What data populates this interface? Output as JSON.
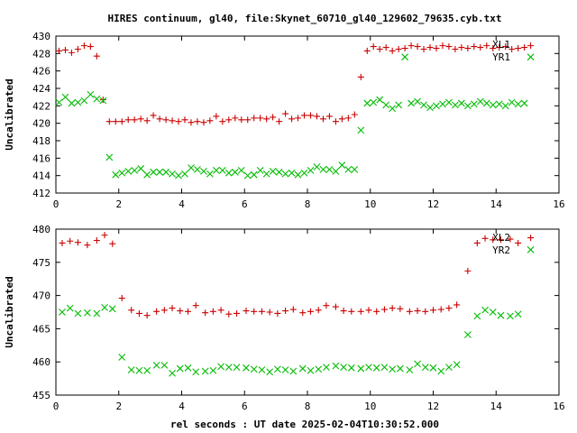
{
  "title": "HIRES continuum, gl40, file:Skynet_60710_gl40_129602_79635.cyb.txt",
  "xlabel": "rel seconds : UT date 2025-02-04T10:30:52.000",
  "colors": {
    "red_series": "#cc0000",
    "green_series": "#00bb00",
    "axes": "#000000",
    "background": "#ffffff"
  },
  "chart_data": [
    {
      "type": "scatter",
      "ylabel": "Uncalibrated",
      "xlim": [
        0,
        16
      ],
      "ylim": [
        412,
        430
      ],
      "xticks": [
        0,
        2,
        4,
        6,
        8,
        10,
        12,
        14,
        16
      ],
      "yticks": [
        412,
        414,
        416,
        418,
        420,
        422,
        424,
        426,
        428,
        430
      ],
      "grid": false,
      "legend_position": "top-right",
      "series": [
        {
          "name": "XL1",
          "marker": "plus",
          "color": "#cc0000",
          "x": [
            0.1,
            0.3,
            0.5,
            0.7,
            0.9,
            1.1,
            1.3,
            1.5,
            1.7,
            1.9,
            2.1,
            2.3,
            2.5,
            2.7,
            2.9,
            3.1,
            3.3,
            3.5,
            3.7,
            3.9,
            4.1,
            4.3,
            4.5,
            4.7,
            4.9,
            5.1,
            5.3,
            5.5,
            5.7,
            5.9,
            6.1,
            6.3,
            6.5,
            6.7,
            6.9,
            7.1,
            7.3,
            7.5,
            7.7,
            7.9,
            8.1,
            8.3,
            8.5,
            8.7,
            8.9,
            9.1,
            9.3,
            9.5,
            9.7,
            9.9,
            10.1,
            10.3,
            10.5,
            10.7,
            10.9,
            11.1,
            11.3,
            11.5,
            11.7,
            11.9,
            12.1,
            12.3,
            12.5,
            12.7,
            12.9,
            13.1,
            13.3,
            13.5,
            13.7,
            13.9,
            14.1,
            14.3,
            14.5,
            14.7,
            14.9,
            15.1
          ],
          "y": [
            428.3,
            428.4,
            428.1,
            428.5,
            428.9,
            428.8,
            427.7,
            422.7,
            420.2,
            420.2,
            420.2,
            420.4,
            420.4,
            420.5,
            420.3,
            420.9,
            420.5,
            420.4,
            420.3,
            420.2,
            420.4,
            420.1,
            420.2,
            420.1,
            420.3,
            420.8,
            420.2,
            420.4,
            420.6,
            420.4,
            420.4,
            420.6,
            420.6,
            420.5,
            420.7,
            420.2,
            421.1,
            420.5,
            420.6,
            420.9,
            420.9,
            420.8,
            420.5,
            420.8,
            420.2,
            420.5,
            420.6,
            421.0,
            425.3,
            428.3,
            428.8,
            428.5,
            428.7,
            428.3,
            428.5,
            428.6,
            428.9,
            428.8,
            428.5,
            428.7,
            428.6,
            428.9,
            428.8,
            428.5,
            428.7,
            428.6,
            428.8,
            428.7,
            428.9,
            428.6,
            428.7,
            428.8,
            428.5,
            428.6,
            428.7,
            428.9
          ]
        },
        {
          "name": "YR1",
          "marker": "cross",
          "color": "#00bb00",
          "x": [
            0.1,
            0.3,
            0.5,
            0.7,
            0.9,
            1.1,
            1.3,
            1.5,
            1.7,
            1.9,
            2.1,
            2.3,
            2.5,
            2.7,
            2.9,
            3.1,
            3.3,
            3.5,
            3.7,
            3.9,
            4.1,
            4.3,
            4.5,
            4.7,
            4.9,
            5.1,
            5.3,
            5.5,
            5.7,
            5.9,
            6.1,
            6.3,
            6.5,
            6.7,
            6.9,
            7.1,
            7.3,
            7.5,
            7.7,
            7.9,
            8.1,
            8.3,
            8.5,
            8.7,
            8.9,
            9.1,
            9.3,
            9.5,
            9.7,
            9.9,
            10.1,
            10.3,
            10.5,
            10.7,
            10.9,
            11.1,
            11.3,
            11.5,
            11.7,
            11.9,
            12.1,
            12.3,
            12.5,
            12.7,
            12.9,
            13.1,
            13.3,
            13.5,
            13.7,
            13.9,
            14.1,
            14.3,
            14.5,
            14.7,
            14.9,
            15.1
          ],
          "y": [
            422.4,
            423.0,
            422.3,
            422.4,
            422.6,
            423.3,
            422.8,
            422.6,
            416.1,
            414.1,
            414.3,
            414.5,
            414.6,
            414.8,
            414.1,
            414.4,
            414.4,
            414.4,
            414.2,
            414.0,
            414.2,
            414.9,
            414.7,
            414.5,
            414.2,
            414.6,
            414.6,
            414.3,
            414.4,
            414.6,
            414.0,
            414.1,
            414.6,
            414.2,
            414.5,
            414.4,
            414.2,
            414.3,
            414.1,
            414.3,
            414.6,
            415.0,
            414.7,
            414.7,
            414.5,
            415.2,
            414.7,
            414.7,
            419.2,
            422.3,
            422.4,
            422.7,
            422.1,
            421.7,
            422.1,
            427.6,
            422.3,
            422.5,
            422.1,
            421.8,
            422.0,
            422.2,
            422.4,
            422.1,
            422.3,
            422.0,
            422.2,
            422.5,
            422.3,
            422.1,
            422.2,
            422.0,
            422.4,
            422.2,
            422.3,
            427.6
          ]
        }
      ]
    },
    {
      "type": "scatter",
      "ylabel": "Uncalibrated",
      "xlim": [
        0,
        16
      ],
      "ylim": [
        455,
        480
      ],
      "xticks": [
        0,
        2,
        4,
        6,
        8,
        10,
        12,
        14,
        16
      ],
      "yticks": [
        455,
        460,
        465,
        470,
        475,
        480
      ],
      "grid": false,
      "legend_position": "top-right",
      "series": [
        {
          "name": "XL2",
          "marker": "plus",
          "color": "#cc0000",
          "x": [
            0.2,
            0.45,
            0.7,
            1.0,
            1.3,
            1.55,
            1.8,
            2.1,
            2.4,
            2.65,
            2.9,
            3.2,
            3.45,
            3.7,
            3.95,
            4.2,
            4.45,
            4.75,
            5.0,
            5.25,
            5.5,
            5.75,
            6.05,
            6.3,
            6.55,
            6.8,
            7.05,
            7.3,
            7.55,
            7.85,
            8.1,
            8.35,
            8.6,
            8.9,
            9.15,
            9.4,
            9.7,
            9.95,
            10.2,
            10.45,
            10.7,
            10.95,
            11.25,
            11.5,
            11.75,
            12.0,
            12.25,
            12.5,
            12.75,
            13.1,
            13.4,
            13.65,
            13.9,
            14.15,
            14.45,
            14.7,
            15.1
          ],
          "y": [
            477.9,
            478.2,
            478.0,
            477.6,
            478.3,
            479.1,
            477.8,
            469.6,
            467.8,
            467.3,
            467.0,
            467.6,
            467.8,
            468.1,
            467.7,
            467.6,
            468.5,
            467.4,
            467.6,
            467.8,
            467.2,
            467.3,
            467.7,
            467.6,
            467.6,
            467.5,
            467.3,
            467.7,
            467.9,
            467.4,
            467.6,
            467.8,
            468.5,
            468.3,
            467.7,
            467.6,
            467.6,
            467.8,
            467.6,
            467.9,
            468.1,
            468.0,
            467.6,
            467.7,
            467.6,
            467.8,
            467.9,
            468.1,
            468.6,
            473.7,
            477.9,
            478.6,
            478.4,
            478.4,
            478.5,
            477.9,
            478.7
          ]
        },
        {
          "name": "YR2",
          "marker": "cross",
          "color": "#00bb00",
          "x": [
            0.2,
            0.45,
            0.7,
            1.0,
            1.3,
            1.55,
            1.8,
            2.1,
            2.4,
            2.65,
            2.9,
            3.2,
            3.45,
            3.7,
            3.95,
            4.2,
            4.45,
            4.75,
            5.0,
            5.25,
            5.5,
            5.75,
            6.05,
            6.3,
            6.55,
            6.8,
            7.05,
            7.3,
            7.55,
            7.85,
            8.1,
            8.35,
            8.6,
            8.9,
            9.15,
            9.4,
            9.7,
            9.95,
            10.2,
            10.45,
            10.7,
            10.95,
            11.25,
            11.5,
            11.75,
            12.0,
            12.25,
            12.5,
            12.75,
            13.1,
            13.4,
            13.65,
            13.9,
            14.15,
            14.45,
            14.7,
            15.1
          ],
          "y": [
            467.5,
            468.1,
            467.3,
            467.4,
            467.3,
            468.2,
            468.0,
            460.7,
            458.8,
            458.7,
            458.7,
            459.5,
            459.5,
            458.3,
            459.0,
            459.1,
            458.5,
            458.6,
            458.7,
            459.3,
            459.2,
            459.2,
            459.1,
            458.9,
            458.8,
            458.5,
            458.9,
            458.8,
            458.6,
            459.0,
            458.7,
            458.9,
            459.2,
            459.4,
            459.2,
            459.1,
            459.0,
            459.2,
            459.1,
            459.2,
            458.9,
            459.0,
            458.8,
            459.7,
            459.2,
            459.1,
            458.6,
            459.2,
            459.6,
            464.1,
            466.9,
            467.8,
            467.5,
            467.0,
            466.9,
            467.2,
            476.9
          ]
        }
      ]
    }
  ]
}
